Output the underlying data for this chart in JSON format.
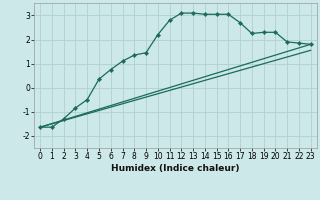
{
  "xlabel": "Humidex (Indice chaleur)",
  "background_color": "#cce8e8",
  "grid_color": "#b0d0d0",
  "line_color": "#1a6b5a",
  "xlim": [
    -0.5,
    23.5
  ],
  "ylim": [
    -2.5,
    3.5
  ],
  "yticks": [
    -2,
    -1,
    0,
    1,
    2,
    3
  ],
  "xticks": [
    0,
    1,
    2,
    3,
    4,
    5,
    6,
    7,
    8,
    9,
    10,
    11,
    12,
    13,
    14,
    15,
    16,
    17,
    18,
    19,
    20,
    21,
    22,
    23
  ],
  "line1_x": [
    0,
    23
  ],
  "line1_y": [
    -1.65,
    1.55
  ],
  "line2_x": [
    0,
    23
  ],
  "line2_y": [
    -1.65,
    1.8
  ],
  "curve_x": [
    0,
    1,
    2,
    3,
    4,
    5,
    6,
    7,
    8,
    9,
    10,
    11,
    12,
    13,
    14,
    15,
    16,
    17,
    18,
    19,
    20,
    21,
    22,
    23
  ],
  "curve_y": [
    -1.65,
    -1.65,
    -1.3,
    -0.85,
    -0.5,
    0.35,
    0.75,
    1.1,
    1.35,
    1.45,
    2.2,
    2.8,
    3.1,
    3.1,
    3.05,
    3.05,
    3.05,
    2.7,
    2.25,
    2.3,
    2.3,
    1.9,
    1.85,
    1.8
  ],
  "xlabel_fontsize": 6.5,
  "tick_fontsize": 5.5
}
